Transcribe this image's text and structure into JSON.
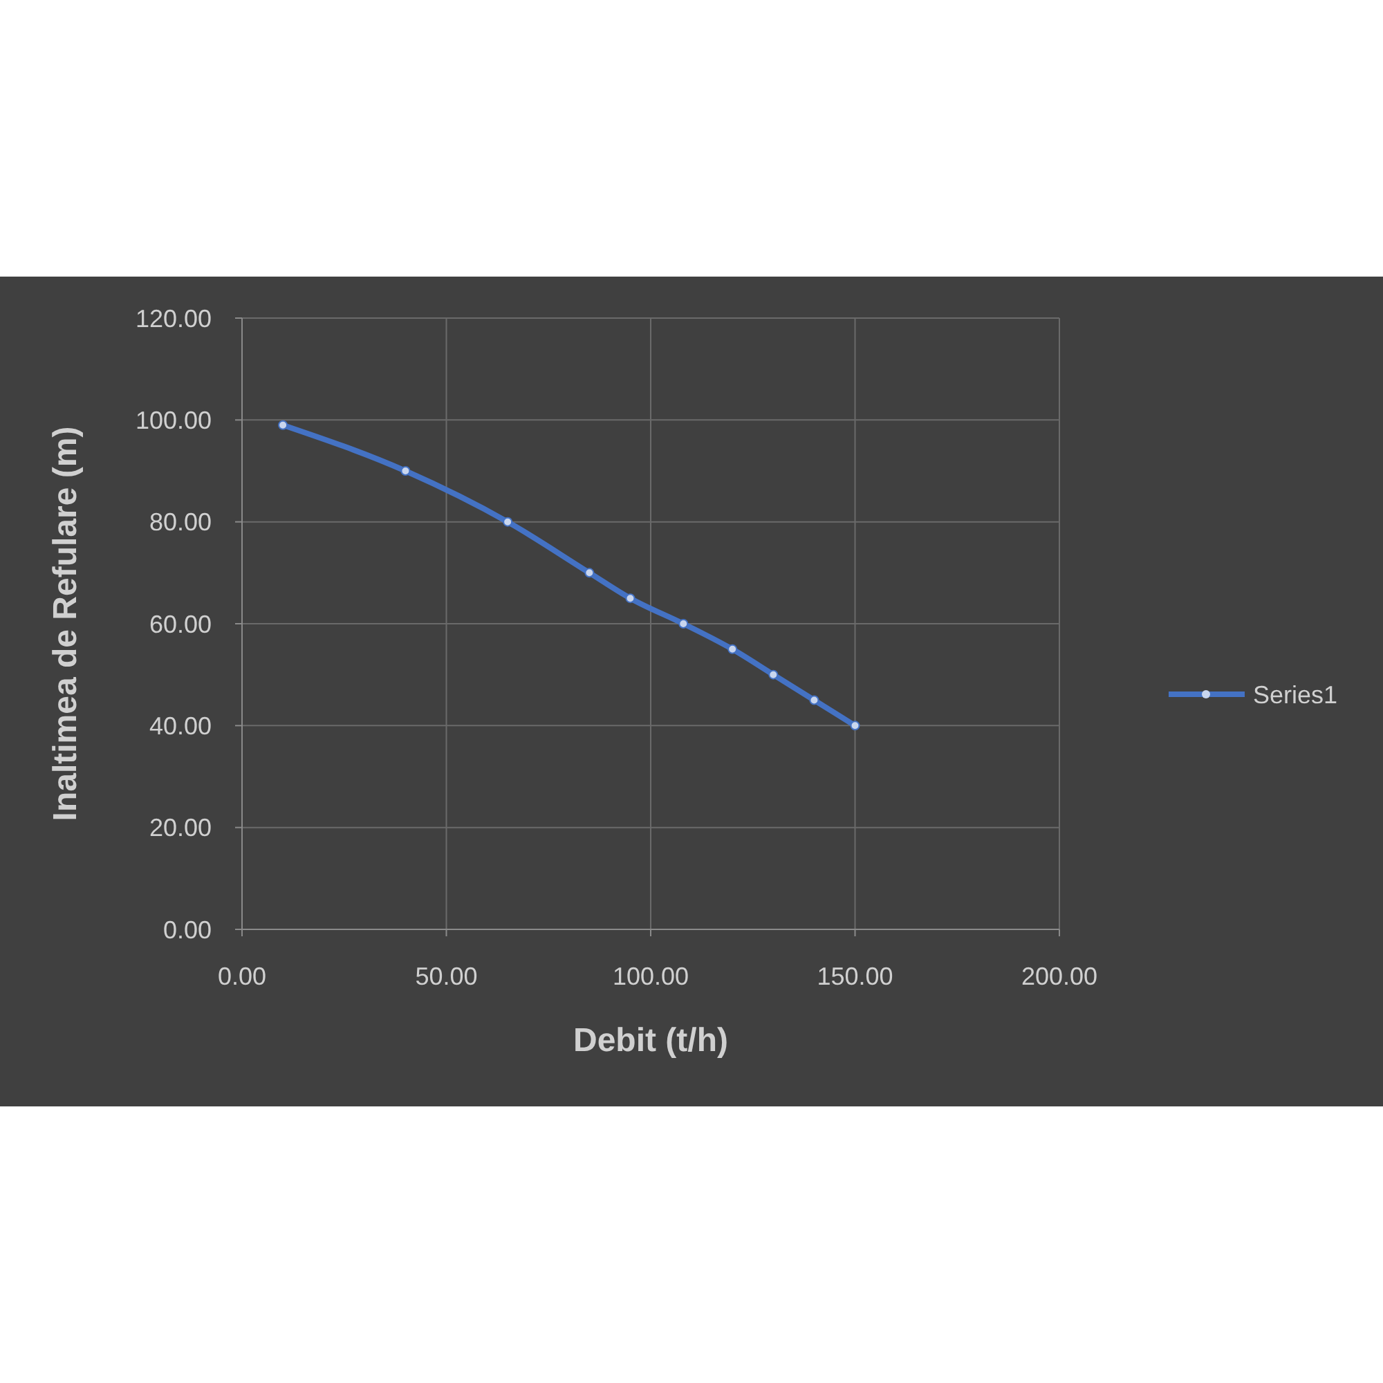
{
  "chart_data": {
    "type": "line",
    "xlabel": "Debit (t/h)",
    "ylabel": "Inaltimea de Refulare (m)",
    "x": [
      10,
      40,
      65,
      85,
      95,
      108,
      120,
      130,
      140,
      150
    ],
    "series": [
      {
        "name": "Series1",
        "color": "#4472c4",
        "values": [
          99,
          90,
          80,
          70,
          65,
          60,
          55,
          50,
          45,
          40
        ]
      }
    ],
    "xlim": [
      0,
      200
    ],
    "xticks": [
      {
        "value": 0,
        "label": "0.00"
      },
      {
        "value": 50,
        "label": "50.00"
      },
      {
        "value": 100,
        "label": "100.00"
      },
      {
        "value": 150,
        "label": "150.00"
      },
      {
        "value": 200,
        "label": "200.00"
      }
    ],
    "ylim": [
      0,
      120
    ],
    "yticks": [
      {
        "value": 0,
        "label": "0.00"
      },
      {
        "value": 20,
        "label": "20.00"
      },
      {
        "value": 40,
        "label": "40.00"
      },
      {
        "value": 60,
        "label": "60.00"
      },
      {
        "value": 80,
        "label": "80.00"
      },
      {
        "value": 100,
        "label": "100.00"
      },
      {
        "value": 120,
        "label": "120.00"
      }
    ],
    "grid": true,
    "legend": "right",
    "marker": "circle",
    "line_style": "solid"
  }
}
